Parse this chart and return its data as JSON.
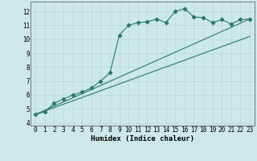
{
  "title": "",
  "xlabel": "Humidex (Indice chaleur)",
  "bg_color": "#cce8e8",
  "grid_color": "#b8d4d4",
  "line_color": "#2a7a6a",
  "xlim": [
    -0.5,
    23.5
  ],
  "ylim": [
    3.8,
    12.7
  ],
  "xticks": [
    0,
    1,
    2,
    3,
    4,
    5,
    6,
    7,
    8,
    9,
    10,
    11,
    12,
    13,
    14,
    15,
    16,
    17,
    18,
    19,
    20,
    21,
    22,
    23
  ],
  "yticks": [
    4,
    5,
    6,
    7,
    8,
    9,
    10,
    11,
    12
  ],
  "series1_x": [
    0,
    1,
    2,
    3,
    4,
    5,
    6,
    7,
    8,
    9,
    10,
    11,
    12,
    13,
    14,
    15,
    16,
    17,
    18,
    19,
    20,
    21,
    22,
    23
  ],
  "series1_y": [
    4.6,
    4.8,
    5.4,
    5.7,
    6.0,
    6.2,
    6.5,
    7.0,
    7.6,
    10.3,
    11.0,
    11.2,
    11.25,
    11.45,
    11.2,
    12.0,
    12.2,
    11.6,
    11.55,
    11.2,
    11.4,
    11.1,
    11.4,
    11.45
  ],
  "series2_x": [
    0,
    23
  ],
  "series2_y": [
    4.6,
    11.45
  ],
  "series3_x": [
    0,
    23
  ],
  "series3_y": [
    4.6,
    10.2
  ],
  "tick_fontsize": 5.5,
  "xlabel_fontsize": 6.5
}
